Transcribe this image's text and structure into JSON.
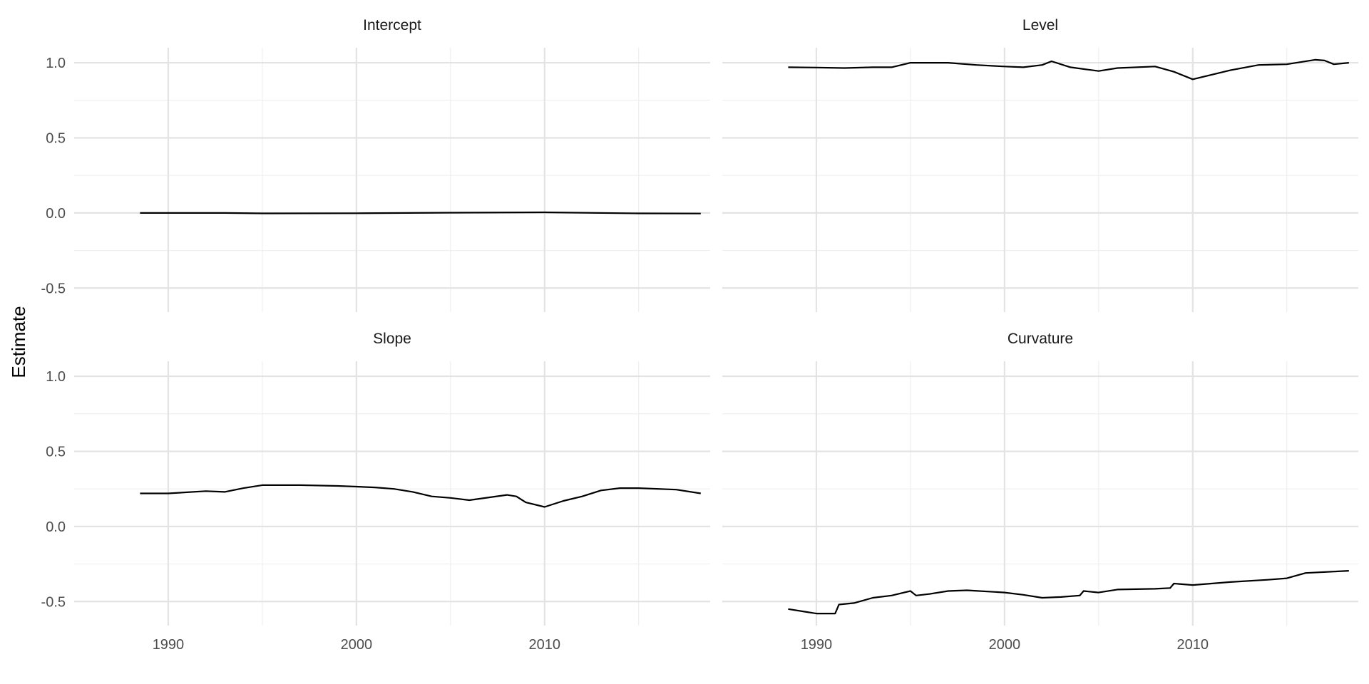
{
  "chart_data": {
    "type": "line",
    "ylabel": "Estimate",
    "xlabel": "",
    "x_ticks": [
      1990,
      2000,
      2010
    ],
    "y_ticks": [
      -0.5,
      0.0,
      0.5,
      1.0
    ],
    "y_tick_labels": [
      "-0.5",
      "0.0",
      "0.5",
      "1.0"
    ],
    "xlim": [
      1985.0,
      2018.8
    ],
    "ylim": [
      -0.66,
      1.1
    ],
    "grid": true,
    "facets": [
      {
        "title": "Intercept",
        "x": [
          1988.5,
          1990,
          1993,
          1995,
          2000,
          2005,
          2010,
          2015,
          2018.3
        ],
        "y": [
          0.0,
          0.0,
          0.0,
          -0.003,
          -0.002,
          0.002,
          0.004,
          -0.003,
          -0.004
        ]
      },
      {
        "title": "Level",
        "x": [
          1988.5,
          1990,
          1991.5,
          1993,
          1994,
          1995,
          1997,
          1998.5,
          2000,
          2001,
          2002,
          2002.5,
          2003.5,
          2005,
          2006,
          2008,
          2009,
          2010,
          2011,
          2012,
          2013.5,
          2015,
          2016.5,
          2017,
          2017.5,
          2018.3
        ],
        "y": [
          0.97,
          0.968,
          0.965,
          0.97,
          0.97,
          1.0,
          1.0,
          0.985,
          0.975,
          0.97,
          0.985,
          1.01,
          0.97,
          0.945,
          0.965,
          0.975,
          0.94,
          0.89,
          0.92,
          0.95,
          0.985,
          0.99,
          1.02,
          1.015,
          0.99,
          1.0
        ]
      },
      {
        "title": "Slope",
        "x": [
          1988.5,
          1990,
          1992,
          1993,
          1994,
          1995,
          1997,
          1999,
          2000,
          2001,
          2002,
          2003,
          2004,
          2005,
          2006,
          2008,
          2008.5,
          2009,
          2010,
          2011,
          2012,
          2013,
          2014,
          2015,
          2017,
          2018.3
        ],
        "y": [
          0.22,
          0.22,
          0.235,
          0.23,
          0.255,
          0.275,
          0.275,
          0.27,
          0.265,
          0.26,
          0.25,
          0.23,
          0.2,
          0.19,
          0.175,
          0.21,
          0.2,
          0.16,
          0.13,
          0.17,
          0.2,
          0.24,
          0.255,
          0.255,
          0.245,
          0.22
        ]
      },
      {
        "title": "Curvature",
        "x": [
          1988.5,
          1989.5,
          1990,
          1991,
          1991.2,
          1992,
          1993,
          1994,
          1995,
          1995.3,
          1996,
          1997,
          1998,
          2000,
          2001,
          2002,
          2003,
          2004,
          2004.2,
          2005,
          2006,
          2008,
          2008.8,
          2009,
          2010,
          2012,
          2014,
          2015,
          2016,
          2018.3
        ],
        "y": [
          -0.55,
          -0.57,
          -0.58,
          -0.58,
          -0.52,
          -0.51,
          -0.475,
          -0.46,
          -0.43,
          -0.46,
          -0.45,
          -0.43,
          -0.425,
          -0.44,
          -0.455,
          -0.475,
          -0.47,
          -0.46,
          -0.43,
          -0.44,
          -0.42,
          -0.415,
          -0.41,
          -0.38,
          -0.39,
          -0.37,
          -0.355,
          -0.345,
          -0.31,
          -0.295
        ]
      }
    ]
  }
}
